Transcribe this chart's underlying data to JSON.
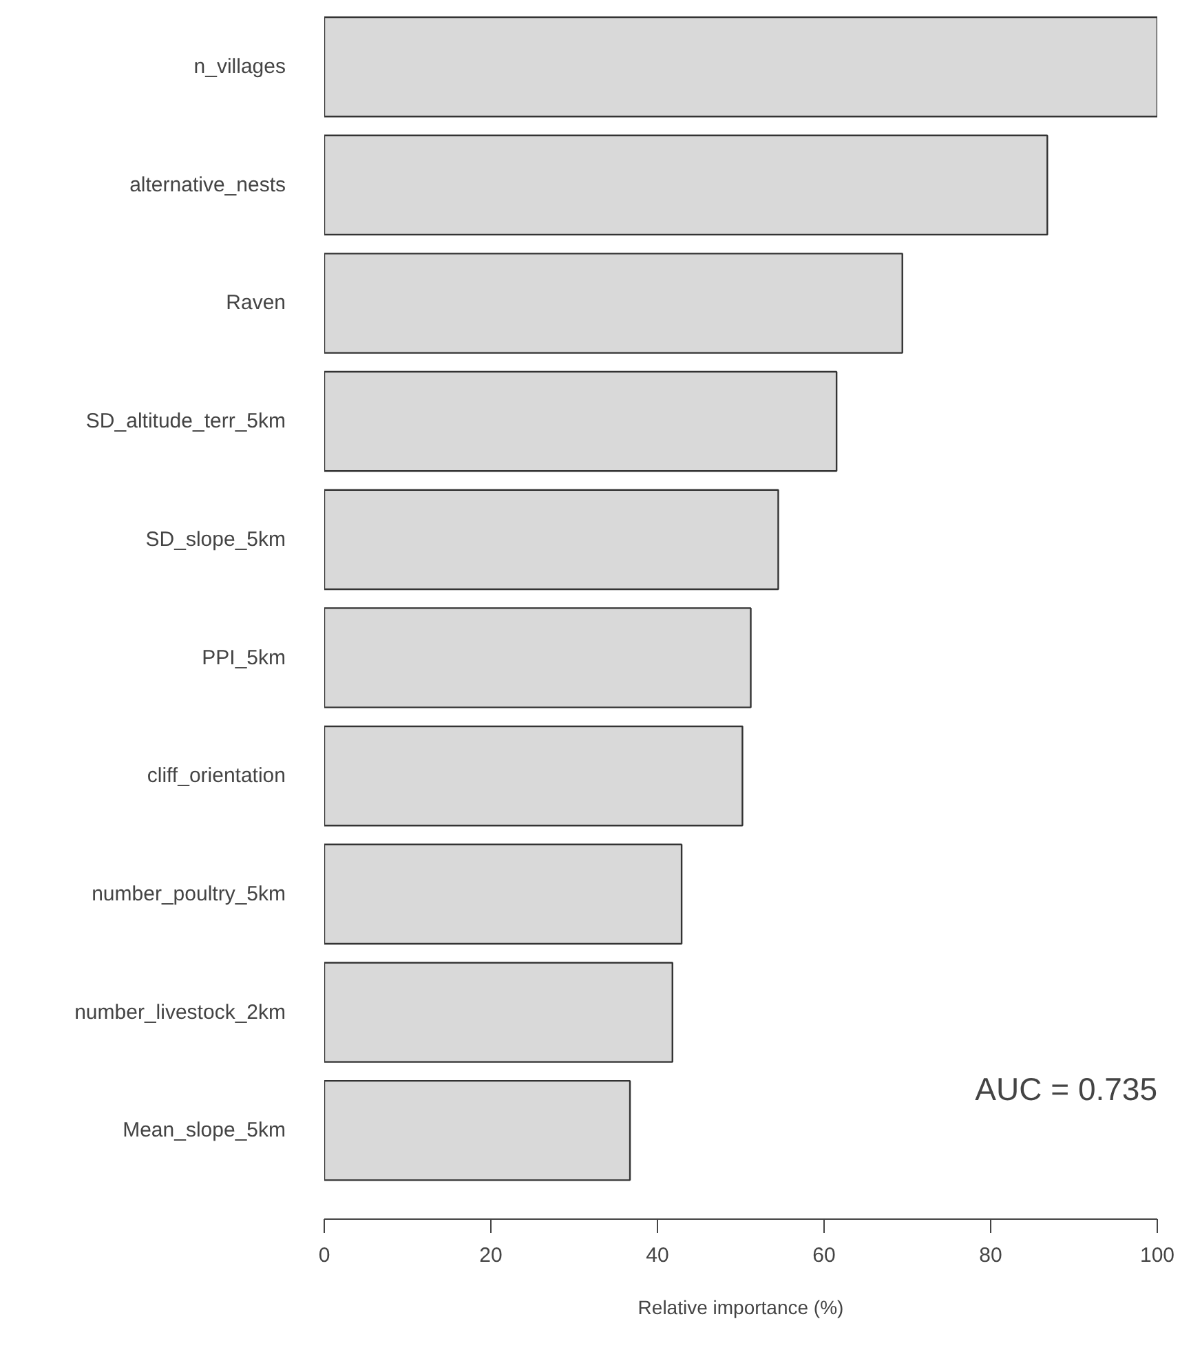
{
  "chart_data": {
    "type": "bar",
    "orientation": "horizontal",
    "categories": [
      "n_villages",
      "alternative_nests",
      "Raven",
      "SD_altitude_terr_5km",
      "SD_slope_5km",
      "PPI_5km",
      "cliff_orientation",
      "number_poultry_5km",
      "number_livestock_2km",
      "Mean_slope_5km"
    ],
    "values": [
      100,
      86.8,
      69.4,
      61.5,
      54.5,
      51.2,
      50.2,
      42.9,
      41.8,
      36.7
    ],
    "color": "#d9d9d9",
    "xlabel": "Relative importance (%)",
    "xlim": [
      0,
      100
    ],
    "xticks": [
      0,
      20,
      40,
      60,
      80,
      100
    ],
    "annotations": [
      "AUC = 0.735"
    ],
    "grid": false
  }
}
